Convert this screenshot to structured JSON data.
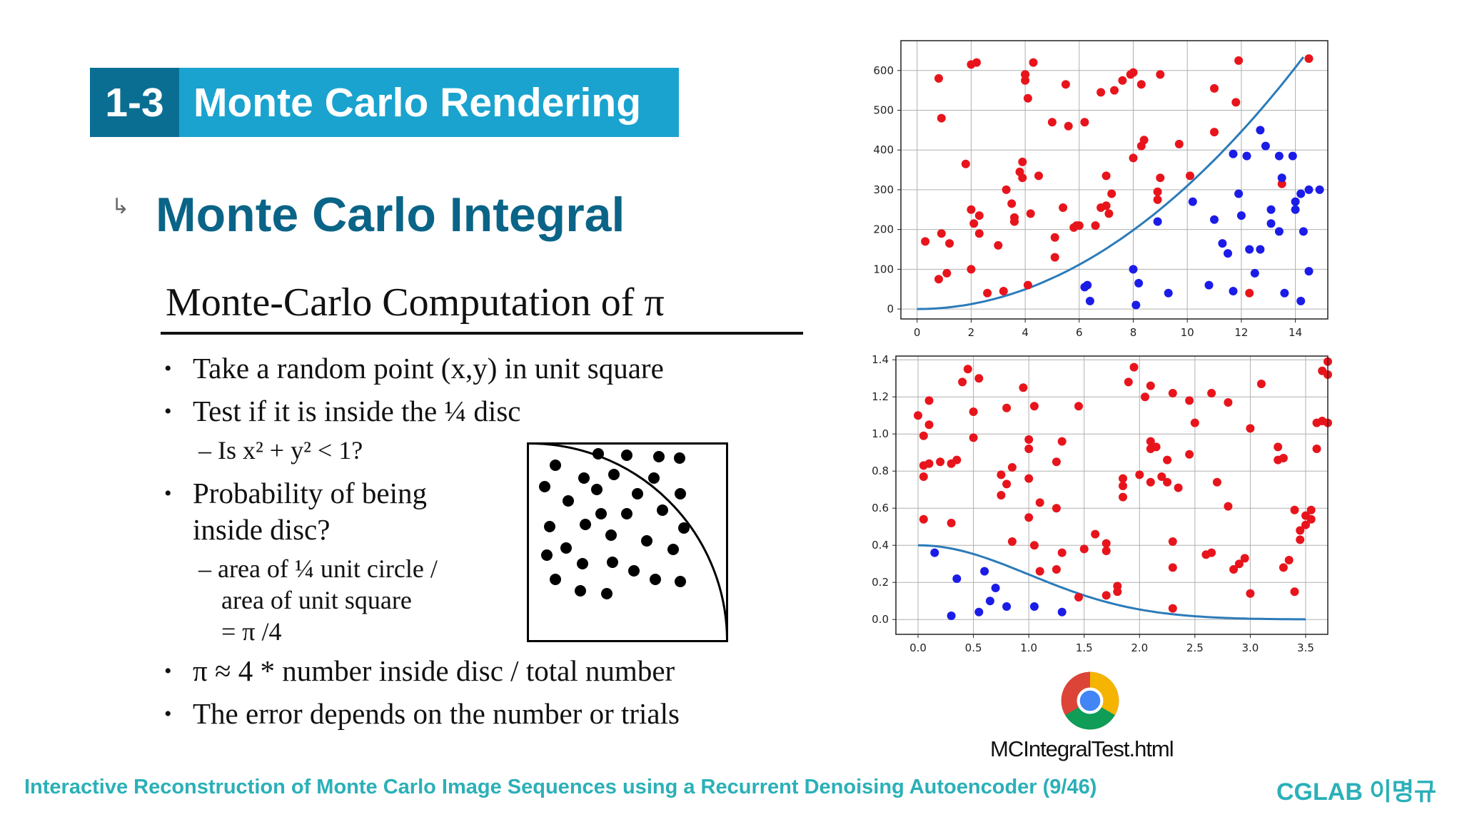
{
  "header": {
    "number": "1-3",
    "title": "Monte Carlo Rendering"
  },
  "section": {
    "arrow": "↳",
    "title": "Monte Carlo Integral"
  },
  "subtitle": "Monte-Carlo Computation of π",
  "bullets": {
    "b1": "Take a random point (x,y) in unit square",
    "b2": "Test if it is inside the ¼ disc",
    "b2_sub": "– Is x² + y² < 1?",
    "b3_line1": "Probability of being",
    "b3_line2": "inside disc?",
    "b3_sub1": "– area of ¼ unit circle /",
    "b3_sub2": "area of unit square",
    "b3_sub3": "= π /4",
    "b4": "π ≈ 4 * number inside disc / total number",
    "b5": "The error depends on the number or trials"
  },
  "chart_data": [
    {
      "type": "scatter",
      "title": "",
      "xlabel": "",
      "ylabel": "",
      "xlim": [
        -0.6,
        15.2
      ],
      "ylim": [
        -25,
        675
      ],
      "xticks": [
        0,
        2,
        4,
        6,
        8,
        10,
        12,
        14
      ],
      "yticks": [
        0,
        100,
        200,
        300,
        400,
        500,
        600
      ],
      "grid": true,
      "curve": {
        "color": "#2b7bb9",
        "function": "y = 3.1 * x^2",
        "x_range": [
          0,
          14.3
        ]
      },
      "series": [
        {
          "color": "#e8141c",
          "points": [
            [
              0.3,
              170
            ],
            [
              0.8,
              580
            ],
            [
              0.9,
              480
            ],
            [
              0.8,
              75
            ],
            [
              0.9,
              190
            ],
            [
              1.1,
              90
            ],
            [
              1.2,
              165
            ],
            [
              2.0,
              615
            ],
            [
              1.8,
              365
            ],
            [
              2.0,
              250
            ],
            [
              2.1,
              215
            ],
            [
              2.3,
              235
            ],
            [
              2.3,
              190
            ],
            [
              2.0,
              100
            ],
            [
              2.6,
              40
            ],
            [
              3.0,
              160
            ],
            [
              3.2,
              45
            ],
            [
              3.5,
              265
            ],
            [
              3.6,
              230
            ],
            [
              3.6,
              220
            ],
            [
              3.8,
              345
            ],
            [
              3.9,
              370
            ],
            [
              3.9,
              330
            ],
            [
              4.0,
              590
            ],
            [
              4.0,
              590
            ],
            [
              4.0,
              575
            ],
            [
              4.1,
              530
            ],
            [
              4.1,
              60
            ],
            [
              4.2,
              240
            ],
            [
              4.3,
              620
            ],
            [
              4.5,
              335
            ],
            [
              5.0,
              470
            ],
            [
              5.1,
              180
            ],
            [
              5.1,
              130
            ],
            [
              5.4,
              255
            ],
            [
              5.5,
              565
            ],
            [
              5.6,
              460
            ],
            [
              5.8,
              205
            ],
            [
              5.9,
              210
            ],
            [
              6.0,
              210
            ],
            [
              6.2,
              470
            ],
            [
              6.6,
              210
            ],
            [
              6.8,
              255
            ],
            [
              6.8,
              545
            ],
            [
              7.0,
              260
            ],
            [
              7.0,
              335
            ],
            [
              7.1,
              240
            ],
            [
              7.2,
              290
            ],
            [
              7.3,
              550
            ],
            [
              7.6,
              575
            ],
            [
              7.9,
              590
            ],
            [
              8.0,
              595
            ],
            [
              8.0,
              380
            ],
            [
              8.3,
              565
            ],
            [
              8.3,
              410
            ],
            [
              8.4,
              425
            ],
            [
              8.9,
              295
            ],
            [
              8.9,
              275
            ],
            [
              9.0,
              330
            ],
            [
              9.0,
              590
            ],
            [
              9.7,
              415
            ],
            [
              10.1,
              335
            ],
            [
              11.0,
              555
            ],
            [
              11.0,
              445
            ],
            [
              11.8,
              520
            ],
            [
              11.9,
              625
            ],
            [
              12.3,
              40
            ],
            [
              13.5,
              315
            ],
            [
              14.5,
              630
            ],
            [
              2.2,
              620
            ],
            [
              3.3,
              300
            ]
          ]
        },
        {
          "color": "#1c1ce8",
          "points": [
            [
              6.2,
              55
            ],
            [
              6.3,
              60
            ],
            [
              6.4,
              20
            ],
            [
              8.0,
              100
            ],
            [
              8.1,
              10
            ],
            [
              8.2,
              65
            ],
            [
              8.9,
              220
            ],
            [
              9.3,
              40
            ],
            [
              10.2,
              270
            ],
            [
              10.8,
              60
            ],
            [
              11.0,
              225
            ],
            [
              11.3,
              165
            ],
            [
              11.5,
              140
            ],
            [
              11.7,
              390
            ],
            [
              11.7,
              45
            ],
            [
              11.9,
              290
            ],
            [
              12.0,
              235
            ],
            [
              12.2,
              385
            ],
            [
              12.3,
              150
            ],
            [
              12.5,
              90
            ],
            [
              12.7,
              150
            ],
            [
              12.9,
              410
            ],
            [
              12.7,
              450
            ],
            [
              13.1,
              250
            ],
            [
              13.1,
              215
            ],
            [
              13.4,
              195
            ],
            [
              13.5,
              330
            ],
            [
              13.6,
              40
            ],
            [
              13.9,
              385
            ],
            [
              14.0,
              250
            ],
            [
              14.0,
              270
            ],
            [
              14.2,
              290
            ],
            [
              14.2,
              20
            ],
            [
              14.3,
              195
            ],
            [
              14.5,
              95
            ],
            [
              14.5,
              300
            ],
            [
              14.9,
              300
            ],
            [
              13.4,
              385
            ]
          ]
        }
      ]
    },
    {
      "type": "scatter",
      "title": "",
      "xlabel": "",
      "ylabel": "",
      "xlim": [
        -0.2,
        3.7
      ],
      "ylim": [
        -0.08,
        1.42
      ],
      "xticks": [
        "0.0",
        "0.5",
        "1.0",
        "1.5",
        "2.0",
        "2.5",
        "3.0",
        "3.5"
      ],
      "yticks": [
        "0.0",
        "0.2",
        "0.4",
        "0.6",
        "0.8",
        "1.0",
        "1.2",
        "1.4"
      ],
      "grid": true,
      "curve": {
        "color": "#2b7bb9",
        "function": "y = 0.4 * exp(-x^2 / 2)",
        "x_range": [
          0,
          3.5
        ]
      },
      "series": [
        {
          "color": "#e8141c",
          "points": [
            [
              0.0,
              1.1
            ],
            [
              0.05,
              0.83
            ],
            [
              0.1,
              1.18
            ],
            [
              0.1,
              1.05
            ],
            [
              0.05,
              0.99
            ],
            [
              0.05,
              0.77
            ],
            [
              0.05,
              0.54
            ],
            [
              0.1,
              0.84
            ],
            [
              0.2,
              0.85
            ],
            [
              0.3,
              0.52
            ],
            [
              0.3,
              0.84
            ],
            [
              0.35,
              0.86
            ],
            [
              0.4,
              1.28
            ],
            [
              0.45,
              1.35
            ],
            [
              0.5,
              0.98
            ],
            [
              0.5,
              1.12
            ],
            [
              0.55,
              1.3
            ],
            [
              0.75,
              0.78
            ],
            [
              0.75,
              0.67
            ],
            [
              0.8,
              1.14
            ],
            [
              0.8,
              0.73
            ],
            [
              0.85,
              0.82
            ],
            [
              0.85,
              0.42
            ],
            [
              0.95,
              1.25
            ],
            [
              1.0,
              0.76
            ],
            [
              1.0,
              0.92
            ],
            [
              1.0,
              0.97
            ],
            [
              1.0,
              0.55
            ],
            [
              1.05,
              0.4
            ],
            [
              1.05,
              1.15
            ],
            [
              1.1,
              0.63
            ],
            [
              1.1,
              0.26
            ],
            [
              1.25,
              0.6
            ],
            [
              1.25,
              0.27
            ],
            [
              1.25,
              0.85
            ],
            [
              1.3,
              0.96
            ],
            [
              1.3,
              0.36
            ],
            [
              1.45,
              1.15
            ],
            [
              1.45,
              0.12
            ],
            [
              1.5,
              0.38
            ],
            [
              1.6,
              0.46
            ],
            [
              1.7,
              0.41
            ],
            [
              1.7,
              0.37
            ],
            [
              1.7,
              0.13
            ],
            [
              1.8,
              0.18
            ],
            [
              1.8,
              0.15
            ],
            [
              1.85,
              0.72
            ],
            [
              1.85,
              0.76
            ],
            [
              1.85,
              0.66
            ],
            [
              1.9,
              1.28
            ],
            [
              1.95,
              1.36
            ],
            [
              2.0,
              0.78
            ],
            [
              2.05,
              1.2
            ],
            [
              2.1,
              0.74
            ],
            [
              2.1,
              0.96
            ],
            [
              2.1,
              0.92
            ],
            [
              2.1,
              1.26
            ],
            [
              2.15,
              0.93
            ],
            [
              2.2,
              0.77
            ],
            [
              2.25,
              0.74
            ],
            [
              2.25,
              0.86
            ],
            [
              2.3,
              1.22
            ],
            [
              2.3,
              0.42
            ],
            [
              2.3,
              0.28
            ],
            [
              2.3,
              0.06
            ],
            [
              2.35,
              0.71
            ],
            [
              2.45,
              1.18
            ],
            [
              2.45,
              0.89
            ],
            [
              2.5,
              1.06
            ],
            [
              2.6,
              0.35
            ],
            [
              2.65,
              0.36
            ],
            [
              2.65,
              1.22
            ],
            [
              2.7,
              0.74
            ],
            [
              2.8,
              1.17
            ],
            [
              2.8,
              0.61
            ],
            [
              2.85,
              0.27
            ],
            [
              2.9,
              0.3
            ],
            [
              2.95,
              0.33
            ],
            [
              3.0,
              0.14
            ],
            [
              3.0,
              1.03
            ],
            [
              3.1,
              1.27
            ],
            [
              3.25,
              0.93
            ],
            [
              3.25,
              0.86
            ],
            [
              3.3,
              0.87
            ],
            [
              3.3,
              0.28
            ],
            [
              3.35,
              0.32
            ],
            [
              3.4,
              0.15
            ],
            [
              3.4,
              0.59
            ],
            [
              3.45,
              0.43
            ],
            [
              3.45,
              0.48
            ],
            [
              3.5,
              0.51
            ],
            [
              3.5,
              0.56
            ],
            [
              3.55,
              0.59
            ],
            [
              3.55,
              0.54
            ],
            [
              3.6,
              1.06
            ],
            [
              3.6,
              0.92
            ],
            [
              3.65,
              1.34
            ],
            [
              3.65,
              1.07
            ],
            [
              3.7,
              1.06
            ],
            [
              3.7,
              1.32
            ],
            [
              3.7,
              1.39
            ]
          ]
        },
        {
          "color": "#1c1ce8",
          "points": [
            [
              0.15,
              0.36
            ],
            [
              0.3,
              0.02
            ],
            [
              0.35,
              0.22
            ],
            [
              0.55,
              0.04
            ],
            [
              0.6,
              0.26
            ],
            [
              0.65,
              0.1
            ],
            [
              0.7,
              0.17
            ],
            [
              0.8,
              0.07
            ],
            [
              1.05,
              0.07
            ],
            [
              1.3,
              0.04
            ]
          ]
        }
      ]
    }
  ],
  "file": {
    "name": "MCIntegralTest.html"
  },
  "footer": {
    "left": "Interactive Reconstruction of Monte Carlo Image Sequences using a Recurrent Denoising Autoencoder (9/46)",
    "right": "CGLAB 이명규"
  },
  "colors": {
    "header_dark": "#0a6e93",
    "header_light": "#1aa3cf",
    "section_title": "#0a6487",
    "footer": "#2bb0b8",
    "red_points": "#e8141c",
    "blue_points": "#1c1ce8",
    "curve": "#2b7bb9"
  }
}
